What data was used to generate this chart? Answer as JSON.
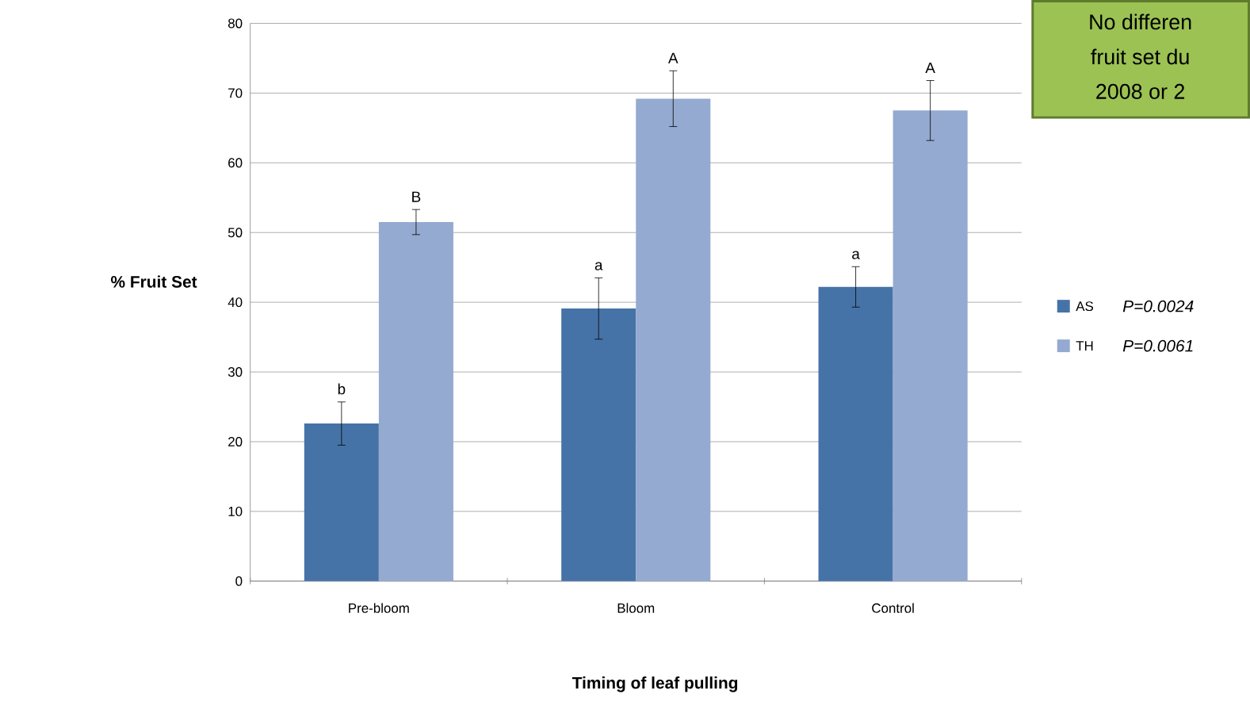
{
  "chart_data": {
    "type": "bar",
    "xlabel": "Timing of leaf pulling",
    "ylabel": "% Fruit Set",
    "categories": [
      "Pre-bloom",
      "Bloom",
      "Control"
    ],
    "series": [
      {
        "name": "AS",
        "color": "#4673a7",
        "values": [
          22.6,
          39.1,
          42.2
        ],
        "errors": [
          3.1,
          4.4,
          2.9
        ]
      },
      {
        "name": "TH",
        "color": "#95aad0",
        "values": [
          51.5,
          69.2,
          67.5
        ],
        "errors": [
          1.8,
          4.0,
          4.3
        ]
      }
    ],
    "ylim": [
      0,
      80
    ],
    "yticks": [
      0,
      10,
      20,
      30,
      40,
      50,
      60,
      70,
      80
    ],
    "grid": "y",
    "legend": "right",
    "annotations": [
      "P=0.0024",
      "P=0.0061",
      "No differen",
      "fruit set du",
      "2008 or 2",
      "b",
      "B",
      "a",
      "A",
      "a",
      "A"
    ]
  }
}
